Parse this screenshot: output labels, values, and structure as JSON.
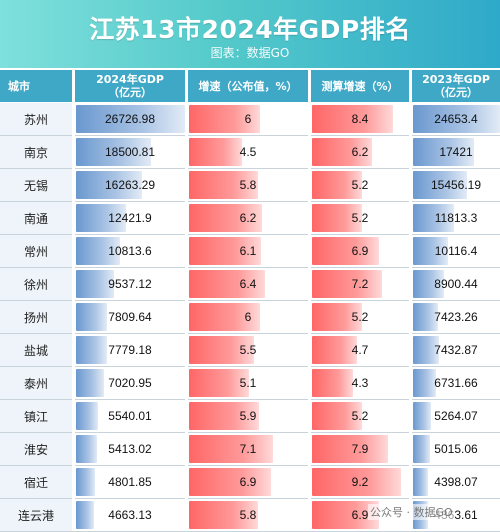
{
  "header": {
    "title": "江苏13市2024年GDP排名",
    "subtitle": "图表：数据GO"
  },
  "columns": {
    "city": "城市",
    "gdp2024": "2024年GDP\n（亿元）",
    "growth": "增速（公布值，%）",
    "calc_growth": "测算增速（%）",
    "gdp2023": "2023年GDP\n（亿元）"
  },
  "colors": {
    "header_bg": "#54c9ca",
    "column_header_bg": "#40a8c7",
    "blue_bar": "#6a98cf",
    "red_bar": "#ff6666"
  },
  "watermark": "公众号 · 数据GO",
  "chart_data": {
    "type": "table",
    "title": "江苏13市2024年GDP排名",
    "subtitle": "图表：数据GO",
    "columns": [
      "城市",
      "2024年GDP（亿元）",
      "增速（公布值，%）",
      "测算增速（%）",
      "2023年GDP（亿元）"
    ],
    "rows": [
      {
        "city": "苏州",
        "gdp2024": "26726.98",
        "growth": "6",
        "calc": "8.4",
        "gdp2023": "24653.4"
      },
      {
        "city": "南京",
        "gdp2024": "18500.81",
        "growth": "4.5",
        "calc": "6.2",
        "gdp2023": "17421"
      },
      {
        "city": "无锡",
        "gdp2024": "16263.29",
        "growth": "5.8",
        "calc": "5.2",
        "gdp2023": "15456.19"
      },
      {
        "city": "南通",
        "gdp2024": "12421.9",
        "growth": "6.2",
        "calc": "5.2",
        "gdp2023": "11813.3"
      },
      {
        "city": "常州",
        "gdp2024": "10813.6",
        "growth": "6.1",
        "calc": "6.9",
        "gdp2023": "10116.4"
      },
      {
        "city": "徐州",
        "gdp2024": "9537.12",
        "growth": "6.4",
        "calc": "7.2",
        "gdp2023": "8900.44"
      },
      {
        "city": "扬州",
        "gdp2024": "7809.64",
        "growth": "6",
        "calc": "5.2",
        "gdp2023": "7423.26"
      },
      {
        "city": "盐城",
        "gdp2024": "7779.18",
        "growth": "5.5",
        "calc": "4.7",
        "gdp2023": "7432.87"
      },
      {
        "city": "泰州",
        "gdp2024": "7020.95",
        "growth": "5.1",
        "calc": "4.3",
        "gdp2023": "6731.66"
      },
      {
        "city": "镇江",
        "gdp2024": "5540.01",
        "growth": "5.9",
        "calc": "5.2",
        "gdp2023": "5264.07"
      },
      {
        "city": "淮安",
        "gdp2024": "5413.02",
        "growth": "7.1",
        "calc": "7.9",
        "gdp2023": "5015.06"
      },
      {
        "city": "宿迁",
        "gdp2024": "4801.85",
        "growth": "6.9",
        "calc": "9.2",
        "gdp2023": "4398.07"
      },
      {
        "city": "连云港",
        "gdp2024": "4663.13",
        "growth": "5.8",
        "calc": "6.9",
        "gdp2023": "4363.61"
      }
    ]
  }
}
